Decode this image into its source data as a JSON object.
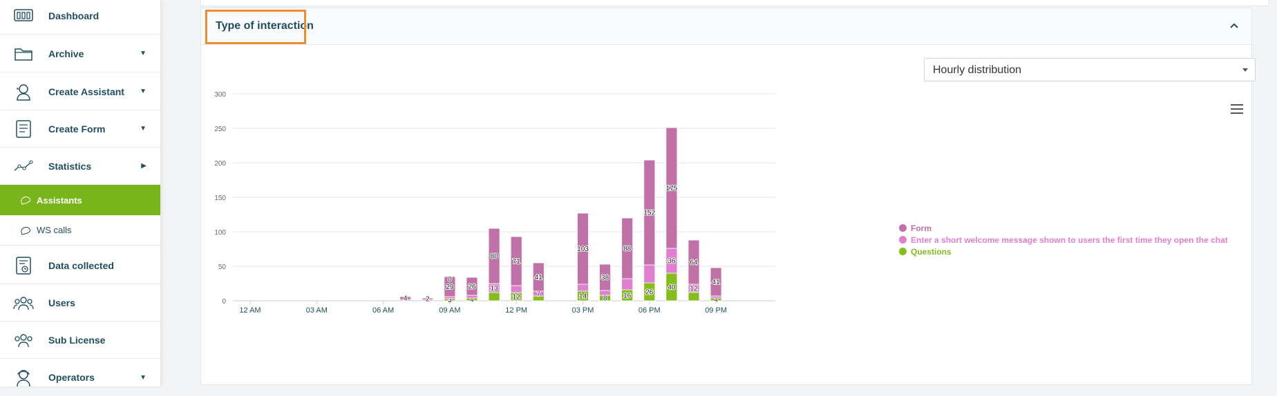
{
  "sidebar": {
    "items": [
      {
        "label": "Dashboard",
        "icon": "dashboard-icon"
      },
      {
        "label": "Archive",
        "icon": "folder-icon",
        "caret": "down"
      },
      {
        "label": "Create Assistant",
        "icon": "assistant-icon",
        "caret": "down"
      },
      {
        "label": "Create Form",
        "icon": "form-icon",
        "caret": "down"
      },
      {
        "label": "Statistics",
        "icon": "statistics-icon",
        "caret": "right"
      },
      {
        "label": "Data collected",
        "icon": "data-icon"
      },
      {
        "label": "Users",
        "icon": "users-icon"
      },
      {
        "label": "Sub License",
        "icon": "sublicense-icon"
      },
      {
        "label": "Operators",
        "icon": "operator-icon",
        "caret": "down"
      }
    ],
    "subitems": [
      {
        "label": "Assistants",
        "active": true
      },
      {
        "label": "WS calls",
        "active": false
      }
    ],
    "active_color": "#78b51a"
  },
  "panel": {
    "title": "Type of interaction",
    "highlight_color": "#f28a2e"
  },
  "dropdown": {
    "value": "Hourly distribution"
  },
  "chart_data": {
    "type": "bar",
    "stacked": true,
    "ylim": [
      0,
      300
    ],
    "yticks": [
      0,
      50,
      100,
      150,
      200,
      250,
      300
    ],
    "xtick_labels": [
      "12 AM",
      "03 AM",
      "06 AM",
      "09 AM",
      "12 PM",
      "03 PM",
      "06 PM",
      "09 PM"
    ],
    "x": [
      0,
      1,
      2,
      3,
      4,
      5,
      6,
      7,
      8,
      9,
      10,
      11,
      12,
      13,
      14,
      15,
      16,
      17,
      18,
      19,
      20,
      21,
      22,
      23
    ],
    "series": [
      {
        "name": "Questions",
        "color": "#84bd1c",
        "values": [
          0,
          0,
          0,
          0,
          0,
          0,
          0,
          0,
          0,
          3,
          4,
          12,
          12,
          7,
          0,
          14,
          8,
          16,
          26,
          40,
          12,
          4,
          0,
          0
        ],
        "labels": [
          null,
          null,
          null,
          null,
          null,
          null,
          null,
          null,
          null,
          "3",
          "4",
          null,
          "12",
          null,
          null,
          "14",
          "8",
          "16",
          "26",
          "40",
          null,
          "4",
          null,
          null
        ]
      },
      {
        "name": "Enter a short welcome message shown to users the first time they open the chat",
        "color": "#e07ed0",
        "values": [
          0,
          0,
          0,
          0,
          0,
          0,
          0,
          2,
          2,
          3,
          4,
          13,
          10,
          7,
          0,
          10,
          7,
          16,
          26,
          36,
          12,
          3,
          0,
          0
        ],
        "labels": [
          null,
          null,
          null,
          null,
          null,
          null,
          null,
          null,
          null,
          null,
          null,
          "13",
          null,
          "7",
          null,
          null,
          null,
          null,
          null,
          "36",
          "12",
          null,
          null,
          null
        ]
      },
      {
        "name": "Form",
        "color": "#c071a8",
        "values": [
          0,
          0,
          0,
          0,
          0,
          0,
          0,
          4,
          2,
          29,
          26,
          80,
          71,
          41,
          0,
          103,
          38,
          88,
          152,
          175,
          64,
          41,
          0,
          0
        ],
        "labels": [
          null,
          null,
          null,
          null,
          null,
          null,
          null,
          "4",
          "2",
          "29",
          "26",
          "80",
          "71",
          "41",
          null,
          "103",
          "38",
          "88",
          "152",
          "175",
          "64",
          "41",
          null,
          null
        ]
      }
    ],
    "extra_labels": [
      {
        "hour": 9,
        "text": "0"
      }
    ],
    "legend_position": "right",
    "grid": true
  }
}
